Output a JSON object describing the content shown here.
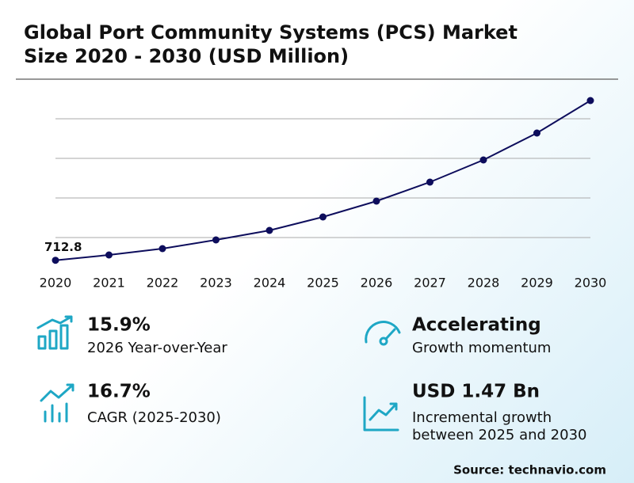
{
  "chart_data": {
    "type": "line",
    "title": [
      "Global Port Community Systems (PCS) Market",
      "Size 2020 - 2030 (USD Million)"
    ],
    "categories": [
      "2020",
      "2021",
      "2022",
      "2023",
      "2024",
      "2025",
      "2026",
      "2027",
      "2028",
      "2029",
      "2030"
    ],
    "series": [
      {
        "name": "Market Size",
        "color": "#0d0d5c",
        "values": [
          712.8,
          780,
          860,
          970,
          1090,
          1260,
          1460,
          1700,
          1980,
          2320,
          2730
        ]
      }
    ],
    "ylim": [
      600,
      2800
    ],
    "yticks": [
      1000,
      1500,
      2000,
      2500
    ],
    "grid": true
  },
  "highlights": [
    {
      "value": "15.9%",
      "lines": [
        "2026 Year-over-Year"
      ]
    },
    {
      "value": "Accelerating",
      "lines": [
        "Growth momentum"
      ]
    },
    {
      "value": "16.7%",
      "lines": [
        "CAGR (2025-2030)"
      ]
    },
    {
      "value": "USD 1.47 Bn",
      "lines": [
        "Incremental growth",
        "between 2025 and 2030"
      ]
    }
  ],
  "source": "Source: technavio.com"
}
